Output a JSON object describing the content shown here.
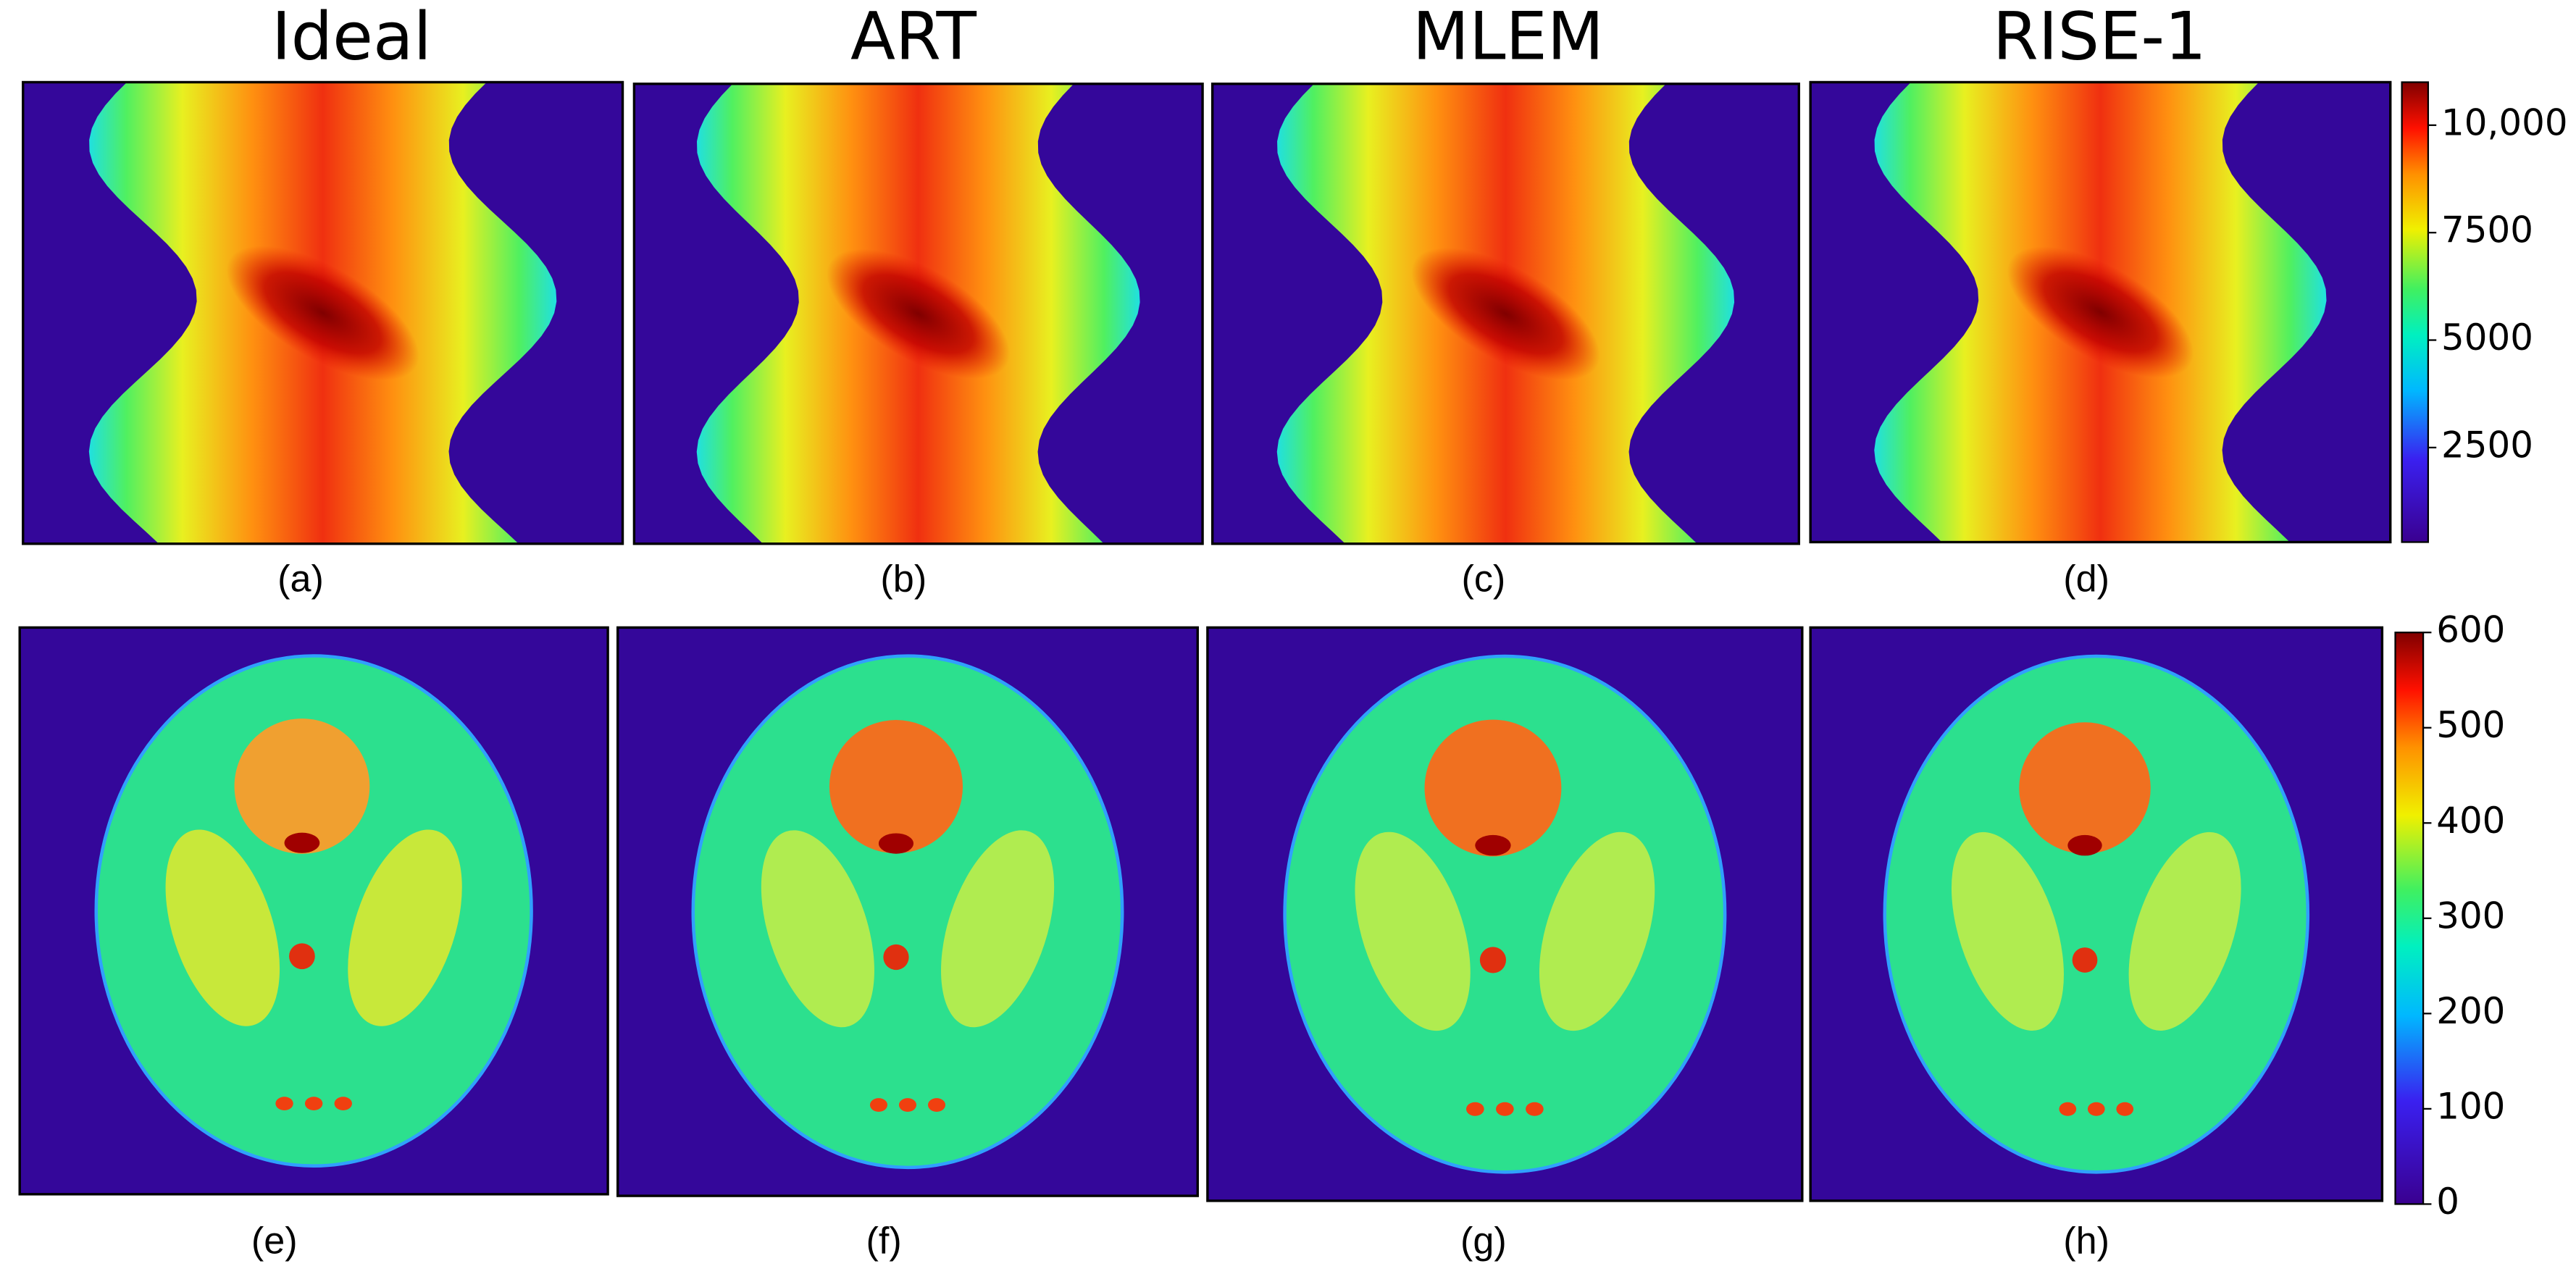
{
  "columns": [
    "Ideal",
    "ART",
    "MLEM",
    "RISE-1"
  ],
  "panel_labels": [
    "(a)",
    "(b)",
    "(c)",
    "(d)",
    "(e)",
    "(f)",
    "(g)",
    "(h)"
  ],
  "colorbars": [
    {
      "lim": [
        300,
        11000
      ],
      "ticks": [
        {
          "value": 10000,
          "label": "10,000"
        },
        7500,
        5000,
        2500
      ]
    },
    {
      "lim": [
        0,
        600
      ],
      "ticks": [
        600,
        500,
        400,
        300,
        200,
        100,
        0
      ]
    }
  ]
}
